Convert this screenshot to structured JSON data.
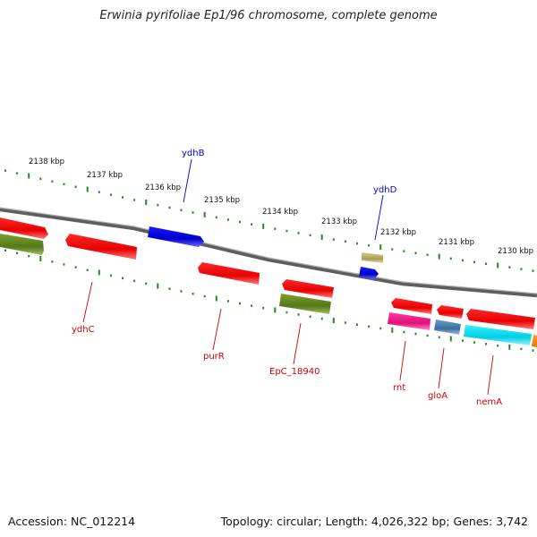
{
  "title": "Erwinia pyrifoliae Ep1/96 chromosome, complete genome",
  "footer": {
    "accession": "Accession: NC_012214",
    "summary": "Topology: circular; Length: 4,026,322 bp; Genes: 3,742"
  },
  "ruler_labels": [
    "2138 kbp",
    "2137 kbp",
    "2136 kbp",
    "2135 kbp",
    "2134 kbp",
    "2133 kbp",
    "2132 kbp",
    "2131 kbp",
    "2130 kbp"
  ],
  "gene_labels": {
    "ydhB": "ydhB",
    "ydhD": "ydhD",
    "ydhC": "ydhC",
    "purR": "purR",
    "EpC_18940": "EpC_18940",
    "rnt": "rnt",
    "gloA": "gloA",
    "nemA": "nemA"
  },
  "colors": {
    "forward_cds": "#ff0000",
    "reverse_cds": "#ff0000",
    "blue_gene": "#0000ee",
    "olive_gene": "#6b8e23",
    "khaki_gene": "#bdb76b",
    "magenta_gene": "#ff1493",
    "steel_gene": "#4682b4",
    "cyan_gene": "#00e5ff",
    "orange_gene": "#ff8c00",
    "ruler": "#228b22",
    "backbone": "#808080",
    "label_red": "#cc0000",
    "label_blue": "#0000cc"
  }
}
